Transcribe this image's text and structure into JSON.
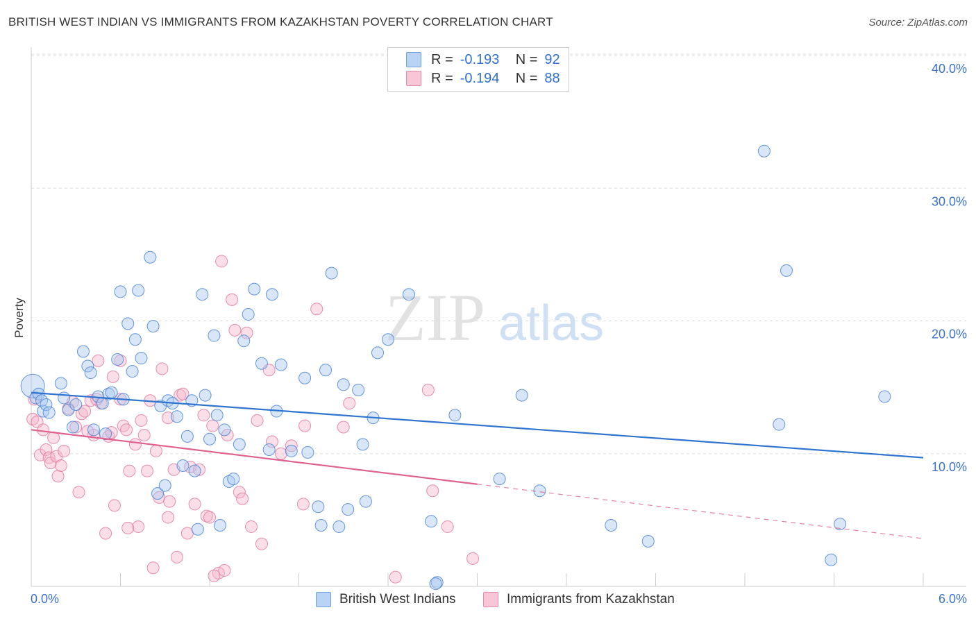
{
  "title": "BRITISH WEST INDIAN VS IMMIGRANTS FROM KAZAKHSTAN POVERTY CORRELATION CHART",
  "source": "Source: ZipAtlas.com",
  "watermark": {
    "zip": "ZIP",
    "atlas": "atlas"
  },
  "legend": {
    "r_label": "R =",
    "n_label": "N =",
    "rows": [
      {
        "r": "-0.193",
        "n": "92"
      },
      {
        "r": "-0.194",
        "n": "88"
      }
    ]
  },
  "colors": {
    "blue_fill": "#a8c8f0",
    "blue_stroke": "#4a84d6",
    "blue_line": "#2f74cf",
    "pink_fill": "#f5b8cc",
    "pink_stroke": "#e07aa0",
    "pink_line": "#e0608e",
    "axis_text": "#3b72c8",
    "grid": "#dddddd"
  },
  "chart_data": {
    "type": "scatter",
    "title": "BRITISH WEST INDIAN VS IMMIGRANTS FROM KAZAKHSTAN POVERTY CORRELATION CHART",
    "xlabel": "",
    "ylabel": "Poverty",
    "xlim": [
      0,
      6
    ],
    "ylim": [
      0,
      40
    ],
    "x_ticks": [
      "0.0%",
      "6.0%"
    ],
    "y_ticks": [
      "10.0%",
      "20.0%",
      "30.0%",
      "40.0%"
    ],
    "y_tick_values": [
      10,
      20,
      30,
      40
    ],
    "grid": true,
    "legend_position": "top-center",
    "series": [
      {
        "name": "British West Indians",
        "color": "blue",
        "trend": {
          "x0": 0,
          "y0": 14.6,
          "x1": 6,
          "y1": 9.7,
          "dashed_from": null
        },
        "points": [
          [
            0.01,
            15.1
          ],
          [
            0.03,
            14.2
          ],
          [
            0.05,
            14.5
          ],
          [
            0.07,
            14.0
          ],
          [
            0.08,
            13.2
          ],
          [
            0.1,
            13.7
          ],
          [
            0.12,
            13.1
          ],
          [
            0.2,
            15.3
          ],
          [
            0.22,
            14.2
          ],
          [
            0.25,
            13.3
          ],
          [
            0.28,
            12.0
          ],
          [
            0.3,
            13.7
          ],
          [
            0.35,
            17.7
          ],
          [
            0.38,
            16.6
          ],
          [
            0.4,
            16.1
          ],
          [
            0.42,
            11.8
          ],
          [
            0.45,
            14.3
          ],
          [
            0.48,
            13.8
          ],
          [
            0.5,
            11.5
          ],
          [
            0.52,
            14.5
          ],
          [
            0.54,
            14.6
          ],
          [
            0.58,
            17.1
          ],
          [
            0.6,
            22.2
          ],
          [
            0.62,
            14.1
          ],
          [
            0.65,
            19.8
          ],
          [
            0.68,
            16.2
          ],
          [
            0.7,
            18.6
          ],
          [
            0.72,
            22.3
          ],
          [
            0.74,
            17.2
          ],
          [
            0.8,
            24.8
          ],
          [
            0.82,
            19.6
          ],
          [
            0.85,
            7.0
          ],
          [
            0.87,
            13.6
          ],
          [
            0.9,
            7.6
          ],
          [
            0.92,
            14.0
          ],
          [
            0.95,
            13.8
          ],
          [
            0.98,
            12.8
          ],
          [
            1.02,
            9.1
          ],
          [
            1.05,
            11.3
          ],
          [
            1.08,
            14.0
          ],
          [
            1.1,
            8.7
          ],
          [
            1.12,
            4.3
          ],
          [
            1.15,
            22.0
          ],
          [
            1.17,
            14.4
          ],
          [
            1.2,
            11.1
          ],
          [
            1.23,
            18.9
          ],
          [
            1.25,
            12.9
          ],
          [
            1.27,
            4.6
          ],
          [
            1.3,
            11.8
          ],
          [
            1.33,
            7.9
          ],
          [
            1.36,
            8.1
          ],
          [
            1.4,
            10.7
          ],
          [
            1.43,
            18.5
          ],
          [
            1.46,
            20.5
          ],
          [
            1.5,
            22.4
          ],
          [
            1.55,
            16.8
          ],
          [
            1.6,
            10.3
          ],
          [
            1.62,
            22.0
          ],
          [
            1.65,
            13.2
          ],
          [
            1.68,
            16.7
          ],
          [
            1.75,
            10.2
          ],
          [
            1.84,
            15.7
          ],
          [
            1.86,
            10.1
          ],
          [
            1.93,
            6.0
          ],
          [
            1.95,
            4.6
          ],
          [
            1.98,
            16.3
          ],
          [
            2.02,
            23.6
          ],
          [
            2.07,
            4.5
          ],
          [
            2.1,
            15.2
          ],
          [
            2.13,
            5.8
          ],
          [
            2.2,
            14.8
          ],
          [
            2.23,
            10.7
          ],
          [
            2.25,
            6.4
          ],
          [
            2.3,
            12.7
          ],
          [
            2.33,
            17.6
          ],
          [
            2.4,
            18.6
          ],
          [
            2.54,
            22.0
          ],
          [
            2.69,
            4.9
          ],
          [
            2.73,
            0.3
          ],
          [
            2.85,
            12.9
          ],
          [
            3.15,
            8.1
          ],
          [
            3.3,
            14.4
          ],
          [
            3.42,
            7.2
          ],
          [
            3.9,
            4.6
          ],
          [
            4.15,
            3.4
          ],
          [
            4.93,
            32.8
          ],
          [
            5.03,
            12.2
          ],
          [
            5.08,
            23.8
          ],
          [
            5.38,
            2.0
          ],
          [
            5.44,
            4.7
          ],
          [
            5.74,
            14.3
          ],
          [
            2.72,
            0.2
          ]
        ]
      },
      {
        "name": "Immigrants from Kazakhstan",
        "color": "pink",
        "trend": {
          "x0": 0,
          "y0": 11.8,
          "x1": 6,
          "y1": 3.6,
          "dashed_from": 3.0
        },
        "points": [
          [
            0.01,
            12.6
          ],
          [
            0.02,
            14.1
          ],
          [
            0.04,
            12.4
          ],
          [
            0.06,
            9.9
          ],
          [
            0.08,
            11.8
          ],
          [
            0.1,
            10.3
          ],
          [
            0.12,
            9.7
          ],
          [
            0.13,
            9.3
          ],
          [
            0.15,
            11.2
          ],
          [
            0.17,
            9.8
          ],
          [
            0.18,
            8.3
          ],
          [
            0.2,
            9.1
          ],
          [
            0.22,
            10.2
          ],
          [
            0.25,
            13.4
          ],
          [
            0.28,
            13.9
          ],
          [
            0.3,
            12.0
          ],
          [
            0.32,
            7.1
          ],
          [
            0.34,
            13.0
          ],
          [
            0.36,
            13.2
          ],
          [
            0.4,
            14.0
          ],
          [
            0.42,
            11.4
          ],
          [
            0.45,
            17.0
          ],
          [
            0.47,
            13.8
          ],
          [
            0.5,
            4.0
          ],
          [
            0.52,
            11.3
          ],
          [
            0.55,
            15.8
          ],
          [
            0.56,
            6.1
          ],
          [
            0.6,
            14.1
          ],
          [
            0.62,
            12.1
          ],
          [
            0.64,
            11.8
          ],
          [
            0.66,
            8.7
          ],
          [
            0.7,
            10.7
          ],
          [
            0.72,
            4.5
          ],
          [
            0.74,
            12.5
          ],
          [
            0.76,
            11.4
          ],
          [
            0.78,
            8.7
          ],
          [
            0.8,
            14.0
          ],
          [
            0.82,
            1.4
          ],
          [
            0.84,
            10.2
          ],
          [
            0.86,
            6.7
          ],
          [
            0.88,
            16.4
          ],
          [
            0.92,
            5.2
          ],
          [
            0.93,
            6.4
          ],
          [
            0.96,
            8.8
          ],
          [
            0.98,
            2.2
          ],
          [
            1.0,
            14.4
          ],
          [
            1.02,
            14.5
          ],
          [
            1.05,
            4.0
          ],
          [
            1.07,
            9.0
          ],
          [
            1.1,
            6.2
          ],
          [
            1.13,
            8.8
          ],
          [
            1.16,
            12.9
          ],
          [
            1.18,
            5.3
          ],
          [
            1.2,
            5.2
          ],
          [
            1.22,
            12.1
          ],
          [
            1.26,
            1.0
          ],
          [
            1.28,
            24.5
          ],
          [
            1.3,
            1.2
          ],
          [
            1.32,
            11.4
          ],
          [
            1.35,
            21.6
          ],
          [
            1.37,
            19.3
          ],
          [
            1.4,
            7.1
          ],
          [
            1.42,
            6.6
          ],
          [
            1.45,
            19.1
          ],
          [
            1.48,
            4.5
          ],
          [
            1.52,
            12.5
          ],
          [
            1.55,
            3.2
          ],
          [
            1.6,
            16.3
          ],
          [
            1.62,
            10.9
          ],
          [
            1.68,
            10.0
          ],
          [
            1.75,
            10.6
          ],
          [
            1.83,
            6.2
          ],
          [
            1.84,
            12.1
          ],
          [
            1.92,
            20.9
          ],
          [
            2.1,
            12.0
          ],
          [
            2.14,
            13.8
          ],
          [
            2.45,
            0.7
          ],
          [
            2.67,
            14.8
          ],
          [
            2.7,
            7.2
          ],
          [
            2.8,
            4.5
          ],
          [
            2.97,
            2.1
          ],
          [
            0.65,
            4.4
          ],
          [
            0.54,
            11.6
          ],
          [
            0.38,
            11.7
          ],
          [
            0.6,
            17.0
          ],
          [
            1.23,
            0.8
          ],
          [
            0.44,
            14.1
          ],
          [
            0.92,
            12.7
          ]
        ]
      }
    ]
  },
  "bottom_legend": [
    {
      "label": "British West Indians"
    },
    {
      "label": "Immigrants from Kazakhstan"
    }
  ]
}
